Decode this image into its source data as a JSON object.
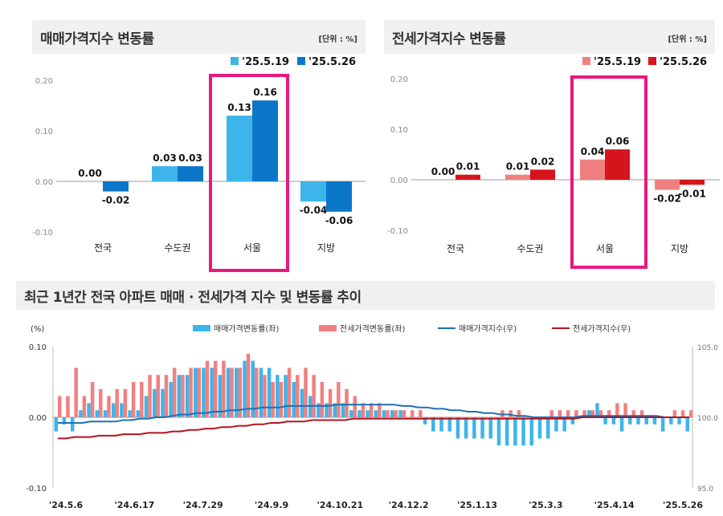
{
  "colors": {
    "sale_light": "#3db5ea",
    "sale_dark": "#0c76c9",
    "jeonse_light": "#f08080",
    "jeonse_dark": "#d6141c",
    "highlight": "#e8197d",
    "sale_line": "#1e6fb5",
    "jeonse_line": "#b3151d"
  },
  "sale_panel": {
    "title": "매매가격지수 변동률",
    "unit": "[단위 : %]"
  },
  "jeonse_panel": {
    "title": "전세가격지수 변동률",
    "unit": "[단위 : %]"
  },
  "trend": {
    "title": "최근 1년간 전국 아파트 매매 · 전세가격 지수 및 변동률 추이",
    "left_unit": "(%)"
  },
  "chart_data": [
    {
      "type": "bar",
      "title": "매매가격지수 변동률",
      "categories": [
        "전국",
        "수도권",
        "서울",
        "지방"
      ],
      "series": [
        {
          "name": "'25.5.19",
          "values": [
            0.0,
            0.03,
            0.13,
            -0.04
          ]
        },
        {
          "name": "'25.5.26",
          "values": [
            -0.02,
            0.03,
            0.16,
            -0.06
          ]
        }
      ],
      "ylim": [
        -0.1,
        0.2
      ],
      "yticks": [
        "0.20",
        "0.10",
        "0.00",
        "-0.10"
      ],
      "highlight_category": "서울",
      "legend": "top-right"
    },
    {
      "type": "bar",
      "title": "전세가격지수 변동률",
      "categories": [
        "전국",
        "수도권",
        "서울",
        "지방"
      ],
      "series": [
        {
          "name": "'25.5.19",
          "values": [
            0.0,
            0.01,
            0.04,
            -0.02
          ]
        },
        {
          "name": "'25.5.26",
          "values": [
            0.01,
            0.02,
            0.06,
            -0.01
          ]
        }
      ],
      "ylim": [
        -0.1,
        0.2
      ],
      "yticks": [
        "0.20",
        "0.10",
        "0.00",
        "-0.10"
      ],
      "highlight_category": "서울",
      "legend": "top-right"
    },
    {
      "type": "bar",
      "title": "최근 1년간 전국 아파트 매매 · 전세가격 지수 및 변동률 추이",
      "legend": "top",
      "series": [
        {
          "name": "매매가격변동률(좌)",
          "kind": "bar",
          "values": [
            -0.02,
            -0.01,
            -0.02,
            0.01,
            0.02,
            0.01,
            0.01,
            0.02,
            0.02,
            0.01,
            0.01,
            0.03,
            0.04,
            0.04,
            0.05,
            0.06,
            0.06,
            0.07,
            0.07,
            0.07,
            0.06,
            0.07,
            0.07,
            0.08,
            0.08,
            0.07,
            0.07,
            0.06,
            0.06,
            0.05,
            0.04,
            0.03,
            0.02,
            0.02,
            0.02,
            0.02,
            0.01,
            0.01,
            0.01,
            0.01,
            0.01,
            0.01,
            0.01,
            0.0,
            0.0,
            -0.01,
            -0.02,
            -0.02,
            -0.02,
            -0.03,
            -0.03,
            -0.03,
            -0.03,
            -0.03,
            -0.04,
            -0.04,
            -0.04,
            -0.04,
            -0.04,
            -0.03,
            -0.03,
            -0.02,
            -0.02,
            -0.01,
            0.0,
            0.01,
            0.02,
            -0.01,
            -0.01,
            -0.02,
            -0.01,
            -0.01,
            -0.01,
            -0.01,
            -0.02,
            -0.01,
            -0.01,
            -0.02
          ]
        },
        {
          "name": "전세가격변동률(좌)",
          "kind": "bar",
          "values": [
            0.03,
            0.03,
            0.07,
            0.03,
            0.05,
            0.04,
            0.03,
            0.04,
            0.04,
            0.05,
            0.05,
            0.06,
            0.06,
            0.06,
            0.07,
            0.06,
            0.07,
            0.07,
            0.08,
            0.08,
            0.08,
            0.07,
            0.07,
            0.09,
            0.07,
            0.06,
            0.05,
            0.05,
            0.07,
            0.06,
            0.07,
            0.06,
            0.05,
            0.04,
            0.05,
            0.04,
            0.03,
            0.02,
            0.02,
            0.02,
            0.01,
            0.01,
            0.01,
            0.01,
            0.01,
            0.0,
            0.0,
            0.0,
            0.0,
            0.0,
            0.0,
            0.0,
            0.0,
            0.0,
            0.01,
            0.01,
            0.01,
            0.0,
            0.0,
            0.0,
            0.01,
            0.01,
            0.01,
            0.01,
            0.01,
            0.01,
            0.01,
            0.01,
            0.02,
            0.02,
            0.01,
            0.01,
            0.0,
            0.0,
            0.0,
            0.01,
            0.01,
            0.01
          ]
        },
        {
          "name": "매매가격지수(우)",
          "kind": "line",
          "values": [
            99.6,
            99.6,
            99.6,
            99.6,
            99.7,
            99.7,
            99.7,
            99.7,
            99.8,
            99.8,
            99.9,
            99.9,
            100.0,
            100.0,
            100.1,
            100.2,
            100.2,
            100.3,
            100.3,
            100.4,
            100.4,
            100.5,
            100.5,
            100.6,
            100.6,
            100.7,
            100.7,
            100.7,
            100.8,
            100.8,
            100.8,
            100.8,
            100.8,
            100.8,
            100.9,
            100.9,
            100.9,
            100.9,
            100.9,
            100.9,
            100.9,
            100.9,
            100.8,
            100.8,
            100.7,
            100.7,
            100.6,
            100.6,
            100.5,
            100.5,
            100.4,
            100.4,
            100.3,
            100.3,
            100.2,
            100.2,
            100.1,
            100.1,
            100.0,
            100.0,
            100.0,
            100.0,
            100.0,
            100.0,
            100.1,
            100.1,
            100.1,
            100.1,
            100.1,
            100.1,
            100.1,
            100.1,
            100.1,
            100.1,
            100.0,
            100.0,
            100.0,
            100.0
          ]
        },
        {
          "name": "전세가격지수(우)",
          "kind": "line",
          "values": [
            98.5,
            98.5,
            98.6,
            98.6,
            98.6,
            98.7,
            98.7,
            98.7,
            98.8,
            98.8,
            98.8,
            98.9,
            98.9,
            98.9,
            99.0,
            99.0,
            99.1,
            99.1,
            99.2,
            99.2,
            99.3,
            99.3,
            99.4,
            99.4,
            99.5,
            99.5,
            99.6,
            99.6,
            99.7,
            99.7,
            99.7,
            99.8,
            99.8,
            99.8,
            99.8,
            99.8,
            99.9,
            99.9,
            99.9,
            99.9,
            99.9,
            99.9,
            99.9,
            99.9,
            99.9,
            99.9,
            99.9,
            99.9,
            99.9,
            99.9,
            99.9,
            99.9,
            99.9,
            99.9,
            99.9,
            99.9,
            99.9,
            99.9,
            99.9,
            99.9,
            99.9,
            99.9,
            99.9,
            99.9,
            100.0,
            100.0,
            100.0,
            100.0,
            100.0,
            100.0,
            100.0,
            100.0,
            100.0,
            100.0,
            100.0,
            100.0,
            100.0,
            100.0
          ]
        }
      ],
      "xticks": [
        "'24.5.6",
        "'24.6.17",
        "'24.7.29",
        "'24.9.9",
        "'24.10.21",
        "'24.12.2",
        "'25.1.13",
        "'25.3.3",
        "'25.4.14",
        "'25.5.26"
      ],
      "yleft": {
        "ylim": [
          -0.1,
          0.1
        ],
        "ticks": [
          "0.10",
          "0.00",
          "-0.10"
        ]
      },
      "yright": {
        "ylim": [
          95.0,
          105.0
        ],
        "ticks": [
          "105.0",
          "100.0",
          "95.0"
        ]
      }
    }
  ]
}
